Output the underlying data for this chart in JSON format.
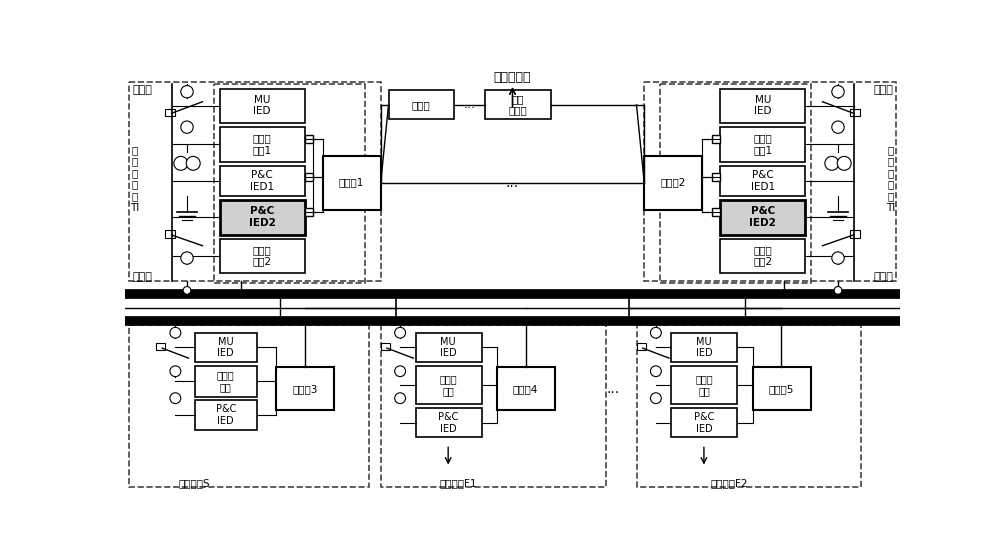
{
  "bg_color": "#ffffff",
  "title": "至站控中心",
  "hp_label": "高压侧",
  "lp_label": "低压侧",
  "ti_label": "变\n压\n器\n间\n隔\nTI",
  "mu_ied": "MU\nIED",
  "znczx1": "智能操\n作箱1",
  "znczx2": "智能操\n作箱2",
  "znczx": "智能操\n作箱",
  "pc_ied1": "P&C\nIED1",
  "pc_ied2": "P&C\nIED2",
  "pc_ied": "P&C\nIED",
  "server": "服务器",
  "central_sw": "中央\n交换机",
  "sw1": "交换机1",
  "sw2": "交换机2",
  "sw3": "交换机3",
  "sw4": "交换机4",
  "sw5": "交换机5",
  "busbar_s": "母线间隔S",
  "feeder_f1": "馈线间隔F1",
  "feeder_f2": "馈线间隔F2",
  "dots": "...",
  "fig_w": 10.0,
  "fig_h": 5.59,
  "dpi": 100
}
